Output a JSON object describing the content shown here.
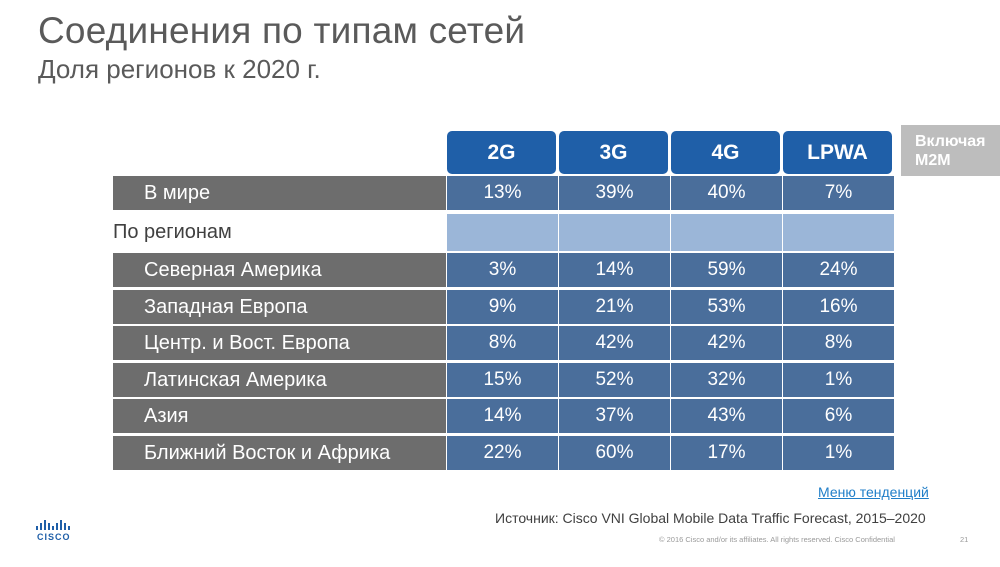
{
  "slide": {
    "title": "Соединения по типам сетей",
    "subtitle": "Доля регионов к 2020 г."
  },
  "table": {
    "columns": [
      "2G",
      "3G",
      "4G",
      "LPWA"
    ],
    "m2m_note": [
      "Включая",
      "M2M"
    ],
    "world_row": {
      "label": "В мире",
      "values": [
        "13%",
        "39%",
        "40%",
        "7%"
      ]
    },
    "regions_header": "По регионам",
    "rows": [
      {
        "label": "Северная Америка",
        "values": [
          "3%",
          "14%",
          "59%",
          "24%"
        ]
      },
      {
        "label": "Западная Европа",
        "values": [
          "9%",
          "21%",
          "53%",
          "16%"
        ]
      },
      {
        "label": "Центр. и Вост.  Европа",
        "values": [
          "8%",
          "42%",
          "42%",
          "8%"
        ]
      },
      {
        "label": "Латинская Америка",
        "values": [
          "15%",
          "52%",
          "32%",
          "1%"
        ]
      },
      {
        "label": "Азия",
        "values": [
          "14%",
          "37%",
          "43%",
          "6%"
        ]
      },
      {
        "label": "Ближний Восток и Африка",
        "values": [
          "22%",
          "60%",
          "17%",
          "1%"
        ]
      }
    ]
  },
  "footer": {
    "trend_link": "Меню тенденций",
    "source": "Источник: Cisco VNI Global Mobile Data Traffic Forecast, 2015–2020",
    "copyright": "© 2016  Cisco and/or its affiliates. All rights reserved.   Cisco Confidential",
    "page_number": "21",
    "logo_text": "CISCO"
  },
  "colors": {
    "header_blue": "#1f5fa8",
    "cell_blue": "#4a6e9b",
    "region_blue": "#9bb6d8",
    "label_gray": "#6d6d6d",
    "m2m_gray": "#bdbdbd"
  }
}
